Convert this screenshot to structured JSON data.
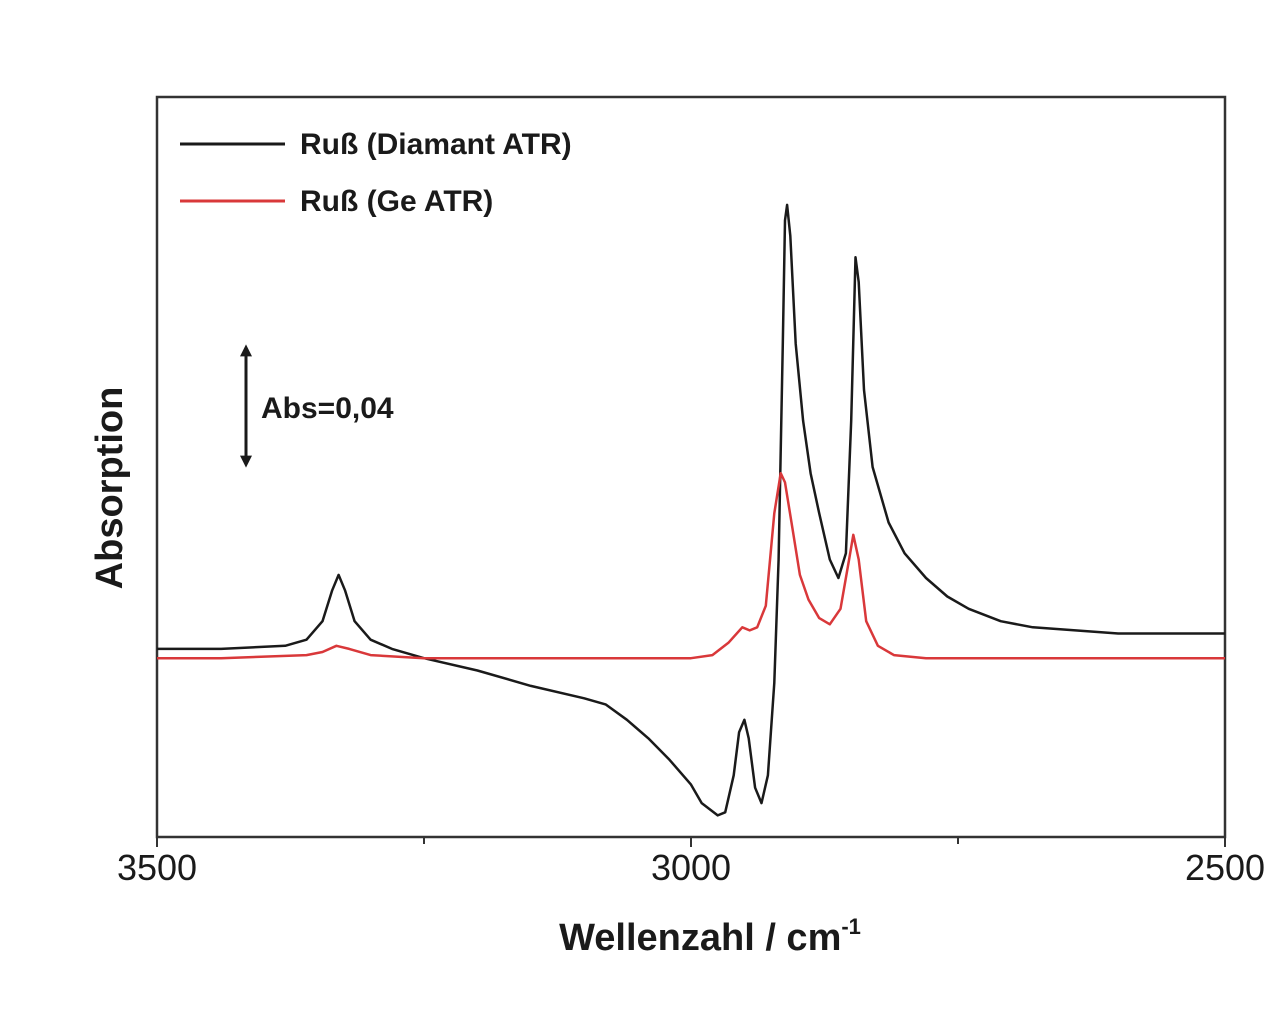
{
  "chart_data": {
    "type": "line",
    "xlabel": "Wellenzahl / cm",
    "xlabel_superscript": "-1",
    "ylabel": "Absorption",
    "xlim": [
      3500,
      2500
    ],
    "x_reversed": true,
    "ylim": [
      -0.06,
      0.18
    ],
    "y_ticks_shown": false,
    "grid": false,
    "legend_position": "top-left",
    "x_ticks": [
      3500,
      3000,
      2500
    ],
    "x_tick_labels": [
      "3500",
      "3000",
      "2500"
    ],
    "x_minor_ticks": [
      3250,
      2750
    ],
    "annotation": {
      "label": "Abs=0,04",
      "delta": 0.04
    },
    "series": [
      {
        "name": "Ruß (Diamant ATR)",
        "color": "#1a1a1a",
        "points": [
          [
            3500,
            0.001
          ],
          [
            3440,
            0.001
          ],
          [
            3380,
            0.002
          ],
          [
            3360,
            0.004
          ],
          [
            3345,
            0.01
          ],
          [
            3336,
            0.02
          ],
          [
            3330,
            0.025
          ],
          [
            3324,
            0.02
          ],
          [
            3315,
            0.01
          ],
          [
            3300,
            0.004
          ],
          [
            3280,
            0.001
          ],
          [
            3250,
            -0.002
          ],
          [
            3200,
            -0.006
          ],
          [
            3150,
            -0.011
          ],
          [
            3100,
            -0.015
          ],
          [
            3080,
            -0.017
          ],
          [
            3060,
            -0.022
          ],
          [
            3040,
            -0.028
          ],
          [
            3020,
            -0.035
          ],
          [
            3000,
            -0.043
          ],
          [
            2990,
            -0.049
          ],
          [
            2975,
            -0.053
          ],
          [
            2968,
            -0.052
          ],
          [
            2960,
            -0.04
          ],
          [
            2955,
            -0.026
          ],
          [
            2950,
            -0.022
          ],
          [
            2946,
            -0.028
          ],
          [
            2940,
            -0.044
          ],
          [
            2934,
            -0.049
          ],
          [
            2928,
            -0.04
          ],
          [
            2922,
            -0.01
          ],
          [
            2918,
            0.03
          ],
          [
            2914,
            0.1
          ],
          [
            2912,
            0.14
          ],
          [
            2910,
            0.145
          ],
          [
            2907,
            0.135
          ],
          [
            2902,
            0.1
          ],
          [
            2895,
            0.075
          ],
          [
            2888,
            0.058
          ],
          [
            2880,
            0.045
          ],
          [
            2870,
            0.03
          ],
          [
            2862,
            0.024
          ],
          [
            2855,
            0.032
          ],
          [
            2850,
            0.075
          ],
          [
            2846,
            0.128
          ],
          [
            2843,
            0.12
          ],
          [
            2838,
            0.085
          ],
          [
            2830,
            0.06
          ],
          [
            2815,
            0.042
          ],
          [
            2800,
            0.032
          ],
          [
            2780,
            0.024
          ],
          [
            2760,
            0.018
          ],
          [
            2740,
            0.014
          ],
          [
            2710,
            0.01
          ],
          [
            2680,
            0.008
          ],
          [
            2640,
            0.007
          ],
          [
            2600,
            0.006
          ],
          [
            2550,
            0.006
          ],
          [
            2500,
            0.006
          ]
        ]
      },
      {
        "name": "Ruß (Ge ATR)",
        "color": "#d9383a",
        "points": [
          [
            3500,
            -0.002
          ],
          [
            3440,
            -0.002
          ],
          [
            3360,
            -0.001
          ],
          [
            3345,
            0.0
          ],
          [
            3332,
            0.002
          ],
          [
            3320,
            0.001
          ],
          [
            3300,
            -0.001
          ],
          [
            3250,
            -0.002
          ],
          [
            3150,
            -0.002
          ],
          [
            3050,
            -0.002
          ],
          [
            3000,
            -0.002
          ],
          [
            2980,
            -0.001
          ],
          [
            2965,
            0.003
          ],
          [
            2952,
            0.008
          ],
          [
            2945,
            0.007
          ],
          [
            2938,
            0.008
          ],
          [
            2930,
            0.015
          ],
          [
            2922,
            0.045
          ],
          [
            2916,
            0.058
          ],
          [
            2912,
            0.055
          ],
          [
            2905,
            0.04
          ],
          [
            2898,
            0.025
          ],
          [
            2890,
            0.017
          ],
          [
            2880,
            0.011
          ],
          [
            2870,
            0.009
          ],
          [
            2860,
            0.014
          ],
          [
            2852,
            0.03
          ],
          [
            2848,
            0.038
          ],
          [
            2843,
            0.03
          ],
          [
            2836,
            0.01
          ],
          [
            2825,
            0.002
          ],
          [
            2810,
            -0.001
          ],
          [
            2780,
            -0.002
          ],
          [
            2740,
            -0.002
          ],
          [
            2600,
            -0.002
          ],
          [
            2500,
            -0.002
          ]
        ]
      }
    ]
  }
}
